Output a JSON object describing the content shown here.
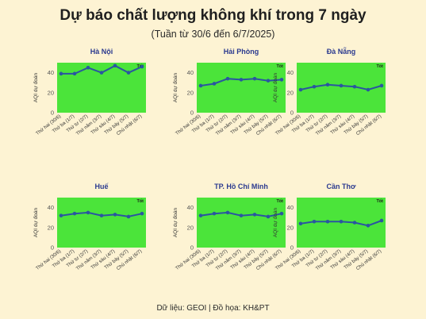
{
  "header": {
    "title": "Dự báo chất lượng không khí trong 7 ngày",
    "subtitle": "(Tuần từ 30/6 đến 6/7/2025)"
  },
  "footer": {
    "source": "Dữ liệu: GEOI | Đồ họa: KH&PT"
  },
  "colors": {
    "background": "#fdf3d3",
    "plot_fill": "#4be43a",
    "line": "#2a56a0",
    "title_text": "#2b3a8f"
  },
  "chart_data": [
    {
      "type": "line",
      "title": "Hà Nội",
      "badge": "Tốt",
      "ylabel": "AQI dự đoán",
      "ylim": [
        0,
        50
      ],
      "yticks": [
        0,
        20,
        40
      ],
      "categories": [
        "Thứ hai (30/6)",
        "Thứ ba (1/7)",
        "Thứ tư (2/7)",
        "Thứ năm (3/7)",
        "Thứ sáu (4/7)",
        "Thứ bảy (5/7)",
        "Chủ nhật (6/7)"
      ],
      "values": [
        39,
        39,
        45,
        40,
        47,
        40,
        46
      ]
    },
    {
      "type": "line",
      "title": "Hải Phòng",
      "badge": "Tốt",
      "ylabel": "AQI dự đoán",
      "ylim": [
        0,
        50
      ],
      "yticks": [
        0,
        20,
        40
      ],
      "categories": [
        "Thứ hai (30/6)",
        "Thứ ba (1/7)",
        "Thứ tư (2/7)",
        "Thứ năm (3/7)",
        "Thứ sáu (4/7)",
        "Thứ bảy (5/7)",
        "Chủ nhật (6/7)"
      ],
      "values": [
        27,
        29,
        34,
        33,
        34,
        32,
        33
      ]
    },
    {
      "type": "line",
      "title": "Đà Nẵng",
      "badge": "Tốt",
      "ylabel": "AQI dự đoán",
      "ylim": [
        0,
        50
      ],
      "yticks": [
        0,
        20,
        40
      ],
      "categories": [
        "Thứ hai (30/6)",
        "Thứ ba (1/7)",
        "Thứ tư (2/7)",
        "Thứ năm (3/7)",
        "Thứ sáu (4/7)",
        "Thứ bảy (5/7)",
        "Chủ nhật (6/7)"
      ],
      "values": [
        23,
        26,
        28,
        27,
        26,
        23,
        27
      ]
    },
    {
      "type": "line",
      "title": "Huế",
      "badge": "Tốt",
      "ylabel": "AQI dự đoán",
      "ylim": [
        0,
        50
      ],
      "yticks": [
        0,
        20,
        40
      ],
      "categories": [
        "Thứ hai (30/6)",
        "Thứ ba (1/7)",
        "Thứ tư (2/7)",
        "Thứ năm (3/7)",
        "Thứ sáu (4/7)",
        "Thứ bảy (5/7)",
        "Chủ nhật (6/7)"
      ],
      "values": [
        32,
        34,
        35,
        32,
        33,
        31,
        34
      ]
    },
    {
      "type": "line",
      "title": "TP. Hồ Chí Minh",
      "badge": "Tốt",
      "ylabel": "AQI dự đoán",
      "ylim": [
        0,
        50
      ],
      "yticks": [
        0,
        20,
        40
      ],
      "categories": [
        "Thứ hai (30/6)",
        "Thứ ba (1/7)",
        "Thứ tư (2/7)",
        "Thứ năm (3/7)",
        "Thứ sáu (4/7)",
        "Thứ bảy (5/7)",
        "Chủ nhật (6/7)"
      ],
      "values": [
        32,
        34,
        35,
        32,
        33,
        31,
        34
      ]
    },
    {
      "type": "line",
      "title": "Cần Thơ",
      "badge": "Tốt",
      "ylabel": "AQI dự đoán",
      "ylim": [
        0,
        50
      ],
      "yticks": [
        0,
        20,
        40
      ],
      "categories": [
        "Thứ hai (30/6)",
        "Thứ ba (1/7)",
        "Thứ tư (2/7)",
        "Thứ năm (3/7)",
        "Thứ sáu (4/7)",
        "Thứ bảy (5/7)",
        "Chủ nhật (6/7)"
      ],
      "values": [
        24,
        26,
        26,
        26,
        25,
        22,
        27
      ]
    }
  ]
}
